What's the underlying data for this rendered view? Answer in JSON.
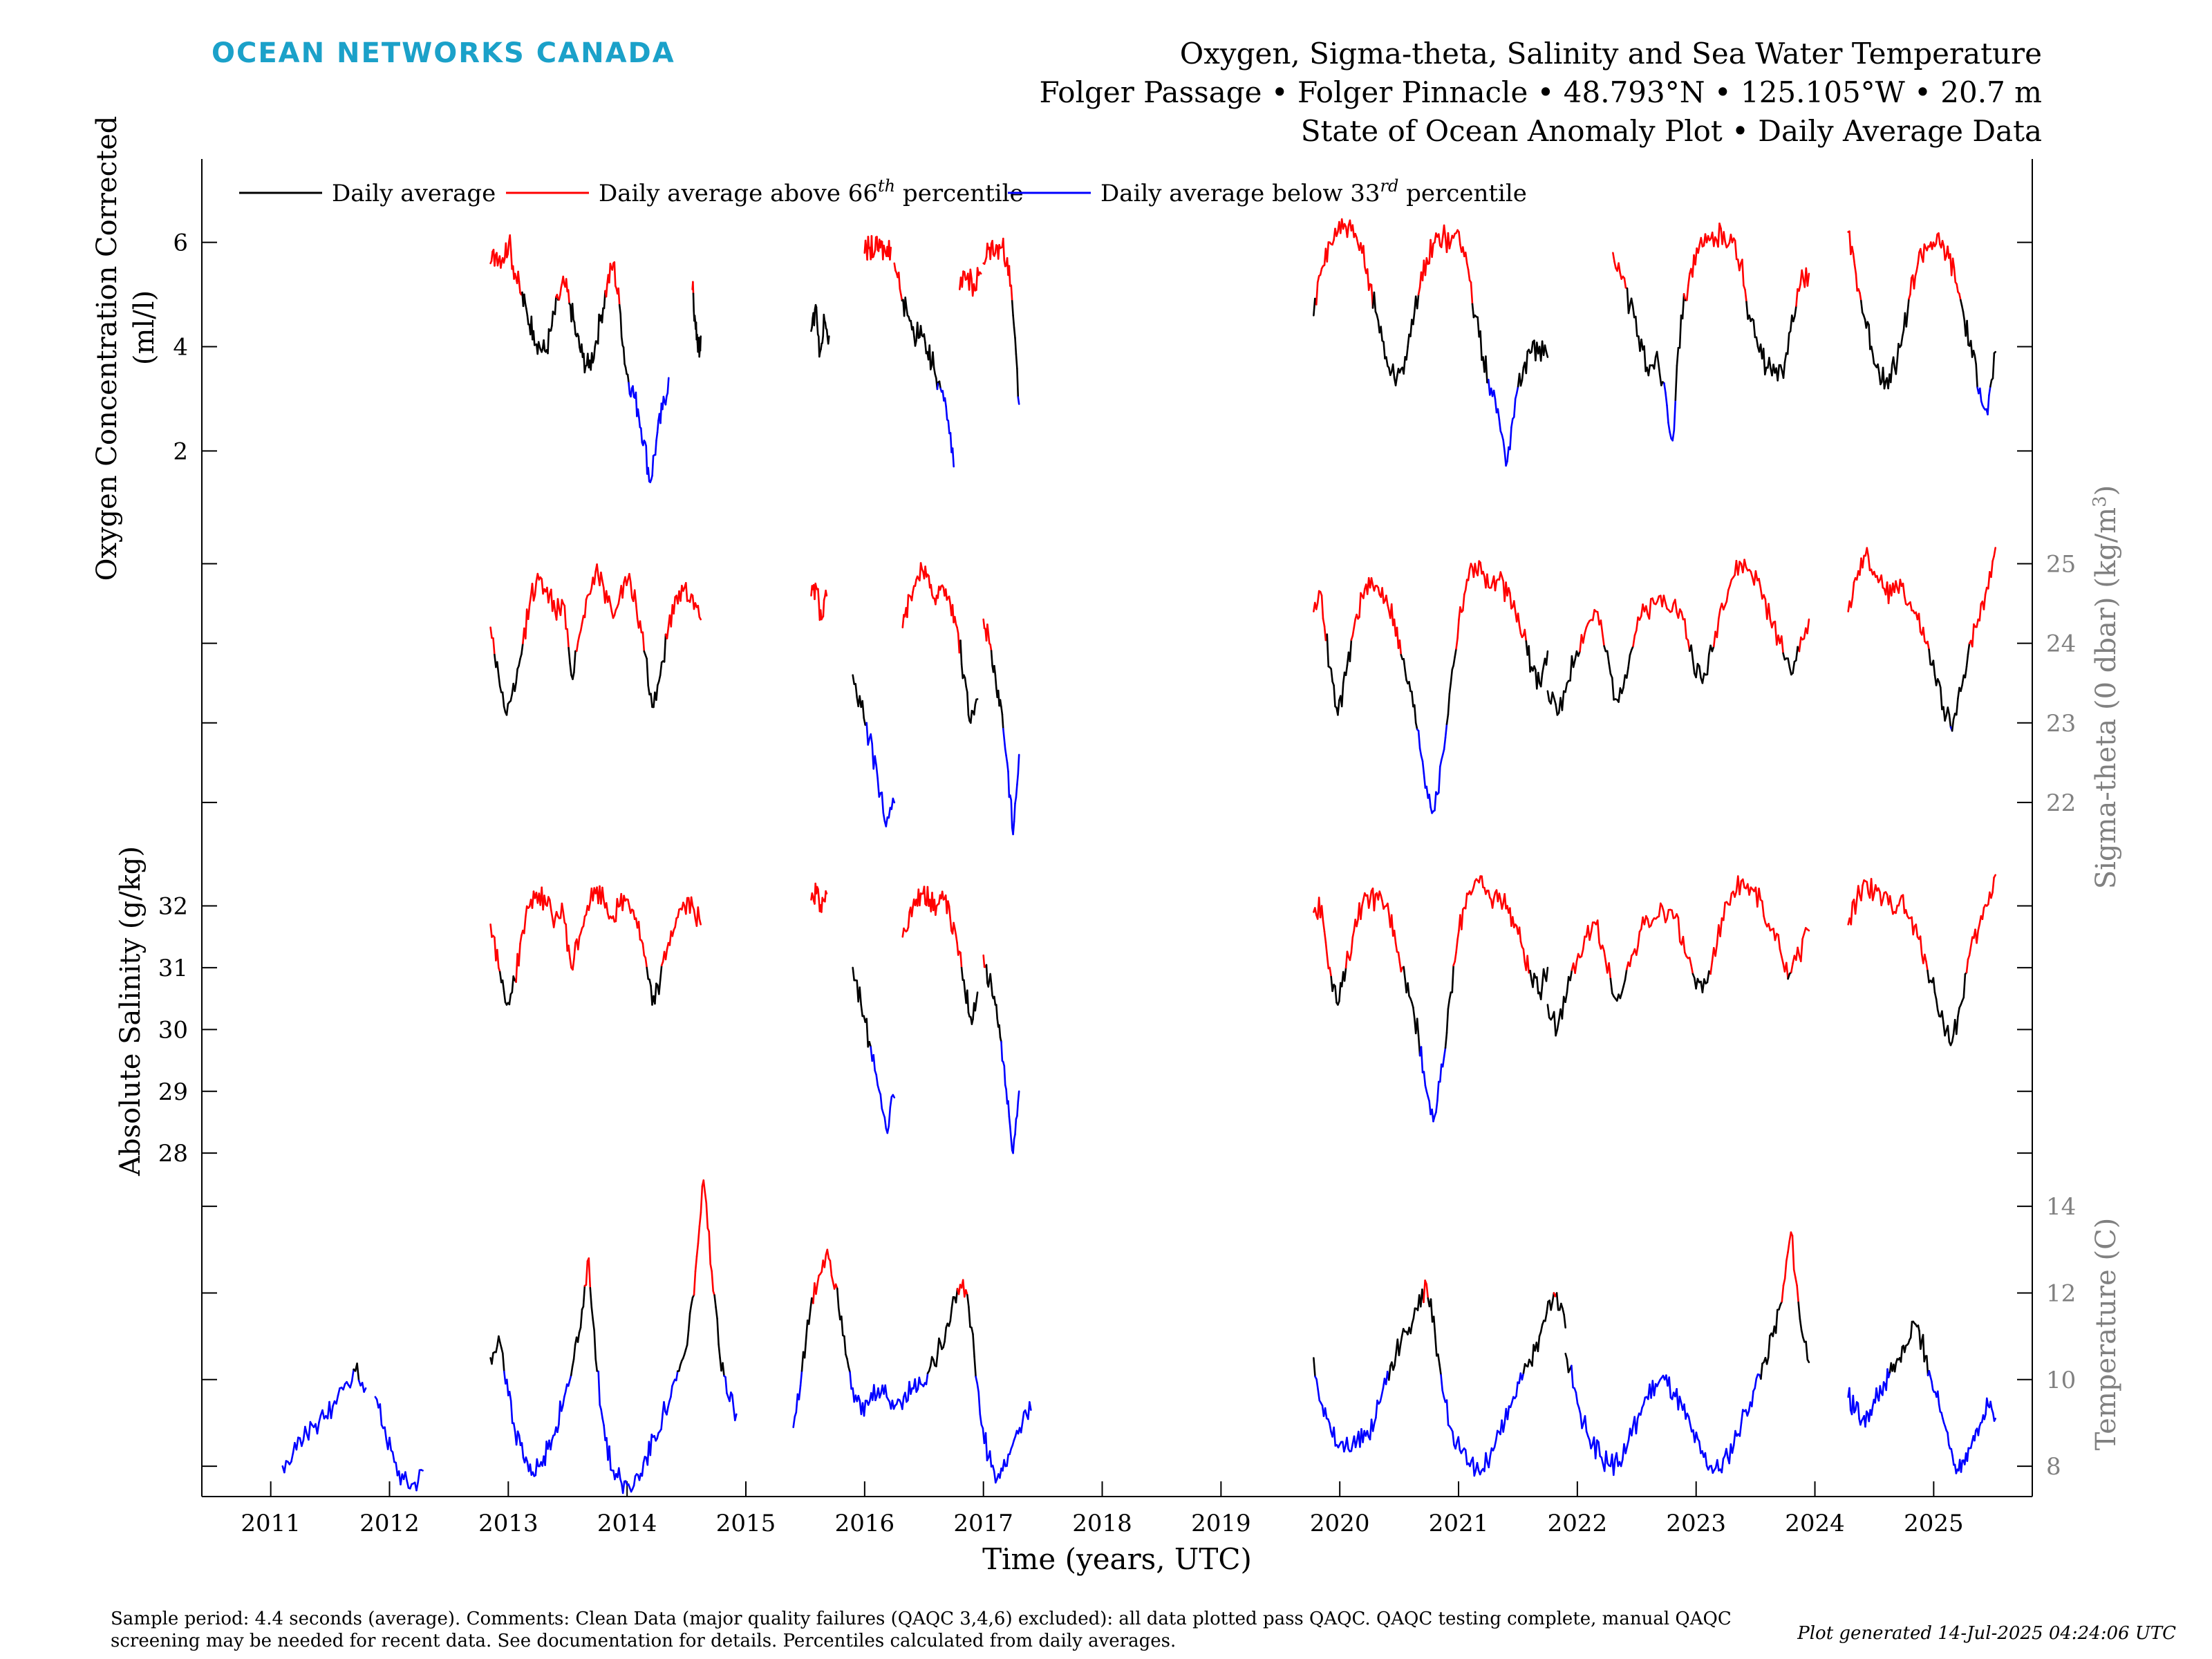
{
  "header": {
    "brand": "OCEAN NETWORKS CANADA",
    "title_line1": "Oxygen, Sigma-theta, Salinity and Sea Water Temperature",
    "title_line2": "Folger Passage • Folger Pinnacle • 48.793°N • 125.105°W • 20.7 m",
    "title_line3": "State of Ocean Anomaly Plot • Daily Average Data"
  },
  "footer": {
    "comments": "Sample period: 4.4 seconds (average). Comments: Clean Data (major quality failures (QAQC 3,4,6) excluded): all data plotted pass QAQC. QAQC testing complete, manual QAQC screening may be needed for recent data. See documentation for details. Percentiles calculated from daily averages.",
    "generated": "Plot generated 14-Jul-2025 04:24:06 UTC"
  },
  "chart_data": {
    "type": "line",
    "xlabel": "Time (years, UTC)",
    "x_ticks": [
      "2011",
      "2012",
      "2013",
      "2014",
      "2015",
      "2016",
      "2017",
      "2018",
      "2019",
      "2020",
      "2021",
      "2022",
      "2023",
      "2024",
      "2025"
    ],
    "xlim": [
      2010.42,
      2025.83
    ],
    "legend": {
      "placement": "top-left",
      "items": [
        {
          "label": "Daily average",
          "color": "#000000"
        },
        {
          "label": "Daily average above 66",
          "sup": "th",
          "suffix": " percentile",
          "color": "#ff0000"
        },
        {
          "label": "Daily average below 33",
          "sup": "rd",
          "suffix": " percentile",
          "color": "#0000ff"
        }
      ]
    },
    "colors": {
      "normal": "#000000",
      "above": "#ff0000",
      "below": "#0000ff",
      "right_axis": "#808080"
    },
    "panels": [
      {
        "id": "oxygen",
        "ylabel_line1": "Oxygen Concentration Corrected",
        "ylabel_line2": "(ml/l)",
        "axis_side": "left",
        "ylim": [
          0.6,
          7.6
        ],
        "yticks": [
          2,
          4,
          6
        ],
        "segments": [
          {
            "start": 2012.85,
            "end": 2014.35,
            "values": [
              5.6,
              5.8,
              5.7,
              6.0,
              5.4,
              5.0,
              4.6,
              4.3,
              4.0,
              3.9,
              4.4,
              4.9,
              5.2,
              4.8,
              4.2,
              3.8,
              3.6,
              4.0,
              4.6,
              5.2,
              5.6,
              4.8,
              3.6,
              3.2,
              2.8,
              2.2,
              1.4,
              2.2,
              2.8,
              3.4
            ]
          },
          {
            "start": 2014.55,
            "end": 2014.62,
            "values": [
              5.1,
              4.5,
              3.9,
              4.2
            ]
          },
          {
            "start": 2015.55,
            "end": 2015.7,
            "values": [
              4.3,
              4.8,
              3.9,
              4.5,
              4.2
            ]
          },
          {
            "start": 2016.0,
            "end": 2016.22,
            "values": [
              5.8,
              5.9,
              5.85,
              5.9,
              5.8,
              5.9
            ]
          },
          {
            "start": 2016.25,
            "end": 2016.75,
            "values": [
              5.6,
              5.0,
              4.6,
              4.2,
              4.4,
              3.9,
              3.6,
              3.2,
              2.6,
              1.7
            ]
          },
          {
            "start": 2016.8,
            "end": 2016.98,
            "values": [
              5.1,
              5.3,
              5.2,
              5.4
            ]
          },
          {
            "start": 2017.0,
            "end": 2017.3,
            "values": [
              5.6,
              5.9,
              5.8,
              5.9,
              5.7,
              4.6,
              2.9
            ]
          },
          {
            "start": 2019.78,
            "end": 2021.75,
            "values": [
              4.6,
              5.5,
              6.0,
              6.2,
              6.3,
              6.1,
              5.8,
              5.2,
              4.5,
              3.8,
              3.4,
              3.6,
              4.2,
              5.0,
              5.7,
              6.0,
              6.1,
              6.0,
              6.2,
              5.6,
              4.6,
              3.8,
              3.2,
              2.6,
              1.8,
              3.0,
              3.6,
              3.9,
              4.0,
              3.8
            ]
          },
          {
            "start": 2022.3,
            "end": 2023.95,
            "values": [
              5.8,
              5.3,
              4.8,
              4.2,
              3.6,
              3.8,
              3.3,
              2.2,
              4.6,
              5.4,
              5.8,
              6.0,
              6.1,
              6.2,
              6.0,
              5.6,
              4.6,
              4.0,
              3.6,
              3.5,
              3.4,
              4.6,
              5.2,
              5.4
            ]
          },
          {
            "start": 2024.28,
            "end": 2025.52,
            "values": [
              6.2,
              5.4,
              4.6,
              4.0,
              3.5,
              3.4,
              3.6,
              4.2,
              5.0,
              5.6,
              5.9,
              6.0,
              5.9,
              5.7,
              5.2,
              4.5,
              3.8,
              3.2,
              2.7,
              3.9
            ]
          }
        ]
      },
      {
        "id": "sigma",
        "ylabel": "Sigma-theta (0 dbar) (kg/m",
        "ylabel_sup": "3",
        "ylabel_suffix": ")",
        "axis_side": "right",
        "ylim": [
          21.4,
          25.5
        ],
        "yticks": [
          22,
          23,
          24,
          25
        ],
        "segments": [
          {
            "start": 2012.85,
            "end": 2014.62,
            "values": [
              24.2,
              23.6,
              23.1,
              23.4,
              24.0,
              24.6,
              24.8,
              24.7,
              24.4,
              24.5,
              23.6,
              24.1,
              24.6,
              24.9,
              24.7,
              24.4,
              24.6,
              24.8,
              24.5,
              23.9,
              23.2,
              23.6,
              24.2,
              24.6,
              24.7,
              24.6,
              24.3
            ]
          },
          {
            "start": 2015.55,
            "end": 2015.68,
            "values": [
              24.6,
              24.7,
              24.3,
              24.6
            ]
          },
          {
            "start": 2015.9,
            "end": 2016.25,
            "values": [
              23.6,
              23.2,
              22.8,
              22.3,
              21.7,
              22.0
            ]
          },
          {
            "start": 2016.32,
            "end": 2016.95,
            "values": [
              24.2,
              24.6,
              24.8,
              24.9,
              24.7,
              24.6,
              24.7,
              24.5,
              24.2,
              23.6,
              23.0,
              23.3
            ]
          },
          {
            "start": 2017.0,
            "end": 2017.3,
            "values": [
              24.3,
              24.0,
              23.6,
              23.2,
              22.5,
              21.6,
              22.6
            ]
          },
          {
            "start": 2019.78,
            "end": 2021.75,
            "values": [
              24.4,
              24.6,
              23.7,
              23.1,
              23.6,
              24.2,
              24.6,
              24.7,
              24.7,
              24.6,
              24.3,
              23.8,
              23.4,
              22.9,
              22.2,
              21.9,
              22.6,
              23.5,
              24.3,
              24.8,
              25.0,
              24.9,
              24.7,
              24.8,
              24.6,
              24.4,
              24.1,
              23.7,
              23.5,
              23.9
            ]
          },
          {
            "start": 2021.75,
            "end": 2023.95,
            "values": [
              23.4,
              23.1,
              23.5,
              23.9,
              24.2,
              24.4,
              23.9,
              23.3,
              23.6,
              24.1,
              24.4,
              24.5,
              24.6,
              24.5,
              24.3,
              23.8,
              23.5,
              23.9,
              24.5,
              24.8,
              25.0,
              24.9,
              24.7,
              24.3,
              24.0,
              23.7,
              23.9,
              24.3
            ]
          },
          {
            "start": 2024.28,
            "end": 2025.52,
            "values": [
              24.4,
              24.8,
              25.1,
              24.9,
              24.7,
              24.6,
              24.8,
              24.5,
              24.3,
              24.0,
              23.6,
              23.2,
              22.9,
              23.4,
              24.0,
              24.3,
              24.7,
              25.2
            ]
          }
        ]
      },
      {
        "id": "salinity",
        "ylabel": "Absolute Salinity (g/kg)",
        "axis_side": "left",
        "ylim": [
          27.7,
          32.9
        ],
        "yticks": [
          28,
          29,
          30,
          31,
          32
        ],
        "segments": [
          {
            "start": 2012.85,
            "end": 2014.62,
            "values": [
              31.7,
              31.0,
              30.4,
              30.8,
              31.6,
              32.1,
              32.2,
              32.0,
              31.8,
              31.9,
              31.0,
              31.5,
              32.0,
              32.2,
              32.1,
              31.8,
              32.0,
              32.1,
              31.8,
              31.2,
              30.4,
              30.8,
              31.4,
              31.8,
              32.0,
              32.0,
              31.7
            ]
          },
          {
            "start": 2015.55,
            "end": 2015.68,
            "values": [
              32.1,
              32.2,
              31.9,
              32.2
            ]
          },
          {
            "start": 2015.9,
            "end": 2016.25,
            "values": [
              31.0,
              30.4,
              29.8,
              29.1,
              28.4,
              28.9
            ]
          },
          {
            "start": 2016.32,
            "end": 2016.95,
            "values": [
              31.5,
              31.9,
              32.1,
              32.2,
              32.1,
              32.0,
              32.1,
              31.8,
              31.4,
              30.8,
              30.2,
              30.6
            ]
          },
          {
            "start": 2017.0,
            "end": 2017.3,
            "values": [
              31.2,
              30.8,
              30.4,
              29.8,
              28.8,
              28.0,
              29.0
            ]
          },
          {
            "start": 2019.78,
            "end": 2021.75,
            "values": [
              31.9,
              32.0,
              31.0,
              30.4,
              31.0,
              31.6,
              32.0,
              32.1,
              32.1,
              32.0,
              31.6,
              31.0,
              30.5,
              29.9,
              29.0,
              28.6,
              29.4,
              30.6,
              31.6,
              32.2,
              32.4,
              32.3,
              32.1,
              32.2,
              32.0,
              31.7,
              31.3,
              30.8,
              30.6,
              31.0
            ]
          },
          {
            "start": 2021.75,
            "end": 2023.95,
            "values": [
              30.4,
              30.0,
              30.6,
              31.1,
              31.5,
              31.7,
              31.1,
              30.5,
              30.8,
              31.3,
              31.7,
              31.8,
              31.9,
              31.8,
              31.5,
              30.9,
              30.6,
              31.1,
              31.8,
              32.2,
              32.4,
              32.3,
              32.1,
              31.6,
              31.3,
              30.9,
              31.2,
              31.6
            ]
          },
          {
            "start": 2024.28,
            "end": 2025.52,
            "values": [
              31.7,
              32.1,
              32.4,
              32.2,
              32.1,
              32.0,
              32.1,
              31.8,
              31.5,
              31.1,
              30.6,
              30.1,
              29.8,
              30.4,
              31.2,
              31.6,
              32.0,
              32.5
            ]
          }
        ]
      },
      {
        "id": "temperature",
        "ylabel": "Temperature (C)",
        "axis_side": "right",
        "ylim": [
          7.3,
          14.8
        ],
        "yticks": [
          8,
          10,
          12,
          14
        ],
        "segments": [
          {
            "start": 2011.1,
            "end": 2011.8,
            "values": [
              8.0,
              8.3,
              8.6,
              8.9,
              9.1,
              9.5,
              9.9,
              10.2,
              9.8
            ]
          },
          {
            "start": 2011.88,
            "end": 2012.28,
            "values": [
              9.6,
              8.9,
              8.1,
              7.7,
              7.6,
              7.9
            ]
          },
          {
            "start": 2012.85,
            "end": 2014.92,
            "values": [
              10.5,
              11.0,
              10.0,
              8.8,
              8.2,
              7.8,
              8.0,
              8.4,
              8.9,
              9.6,
              10.3,
              11.2,
              12.8,
              10.2,
              8.6,
              7.9,
              7.6,
              7.5,
              7.8,
              8.2,
              8.7,
              9.2,
              9.6,
              10.2,
              10.8,
              12.5,
              14.6,
              12.5,
              10.5,
              9.6,
              9.2
            ]
          },
          {
            "start": 2015.4,
            "end": 2017.4,
            "values": [
              8.9,
              10.2,
              11.6,
              12.4,
              13.0,
              12.2,
              11.0,
              9.8,
              9.2,
              9.5,
              9.8,
              9.6,
              9.4,
              9.6,
              9.8,
              9.9,
              10.2,
              10.6,
              11.2,
              11.9,
              12.3,
              11.2,
              9.2,
              8.2,
              7.7,
              8.0,
              8.6,
              9.0,
              9.3
            ]
          },
          {
            "start": 2019.78,
            "end": 2021.9,
            "values": [
              10.5,
              9.4,
              8.8,
              8.5,
              8.4,
              8.6,
              8.7,
              9.0,
              9.8,
              10.4,
              10.8,
              11.2,
              11.6,
              12.2,
              11.0,
              9.6,
              8.8,
              8.3,
              8.0,
              7.9,
              8.1,
              8.6,
              9.0,
              9.6,
              10.0,
              10.4,
              11.0,
              11.8,
              12.0,
              11.2
            ]
          },
          {
            "start": 2021.9,
            "end": 2023.95,
            "values": [
              10.6,
              9.8,
              9.0,
              8.5,
              8.2,
              8.0,
              8.1,
              8.6,
              9.1,
              9.6,
              9.9,
              10.0,
              9.7,
              9.3,
              8.8,
              8.3,
              8.0,
              7.9,
              8.2,
              8.7,
              9.3,
              9.8,
              10.4,
              11.0,
              11.8,
              13.4,
              11.4,
              10.4
            ]
          },
          {
            "start": 2024.28,
            "end": 2025.52,
            "values": [
              9.6,
              9.3,
              9.1,
              9.3,
              9.6,
              9.9,
              10.2,
              10.5,
              10.8,
              11.3,
              10.9,
              10.2,
              9.6,
              9.0,
              8.4,
              7.9,
              8.3,
              8.7,
              9.0,
              9.4,
              9.1
            ]
          }
        ]
      }
    ]
  }
}
